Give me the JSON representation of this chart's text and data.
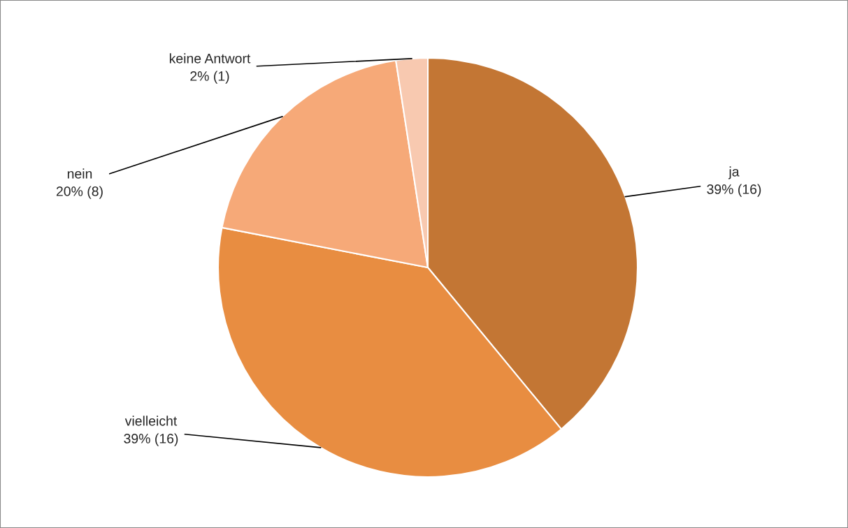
{
  "chart_data": {
    "type": "pie",
    "categories": [
      "ja",
      "vielleicht",
      "nein",
      "keine Antwort"
    ],
    "values": [
      16,
      16,
      8,
      1
    ],
    "colors": [
      "#c37634",
      "#e88d41",
      "#f6a978",
      "#f8c9b0"
    ],
    "value_labels": [
      "39% (16)",
      "39% (16)",
      "20% (8)",
      "2% (1)"
    ],
    "legend": false
  }
}
